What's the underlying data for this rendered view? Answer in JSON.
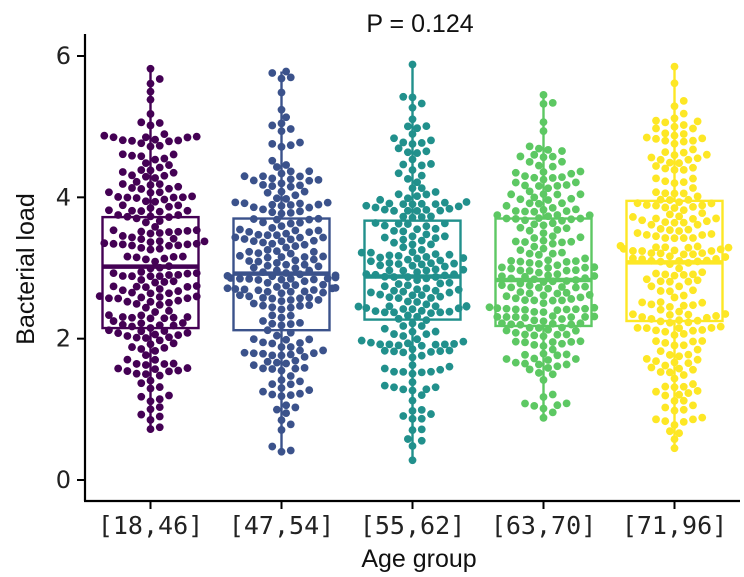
{
  "chart_data": {
    "type": "box",
    "overlay": "beeswarm",
    "title": "P = 0.124",
    "xlabel": "Age group",
    "ylabel": "Bacterial load",
    "ylim": [
      0,
      6.3
    ],
    "yticks": [
      0,
      2,
      4,
      6
    ],
    "grid": false,
    "legend": "none",
    "points_per_group": 220,
    "groups": [
      {
        "name": "[18,46]",
        "color": "#440154",
        "min": 0.72,
        "q1": 2.15,
        "median": 3.02,
        "q3": 3.72,
        "max": 5.82
      },
      {
        "name": "[47,54]",
        "color": "#3B528B",
        "min": 0.4,
        "q1": 2.12,
        "median": 2.92,
        "q3": 3.7,
        "max": 5.78
      },
      {
        "name": "[55,62]",
        "color": "#21908C",
        "min": 0.28,
        "q1": 2.27,
        "median": 2.88,
        "q3": 3.67,
        "max": 5.88
      },
      {
        "name": "[63,70]",
        "color": "#5DC863",
        "min": 0.88,
        "q1": 2.18,
        "median": 2.83,
        "q3": 3.7,
        "max": 5.45
      },
      {
        "name": "[71,96]",
        "color": "#FDE725",
        "min": 0.45,
        "q1": 2.25,
        "median": 3.08,
        "q3": 3.95,
        "max": 5.85
      }
    ]
  }
}
